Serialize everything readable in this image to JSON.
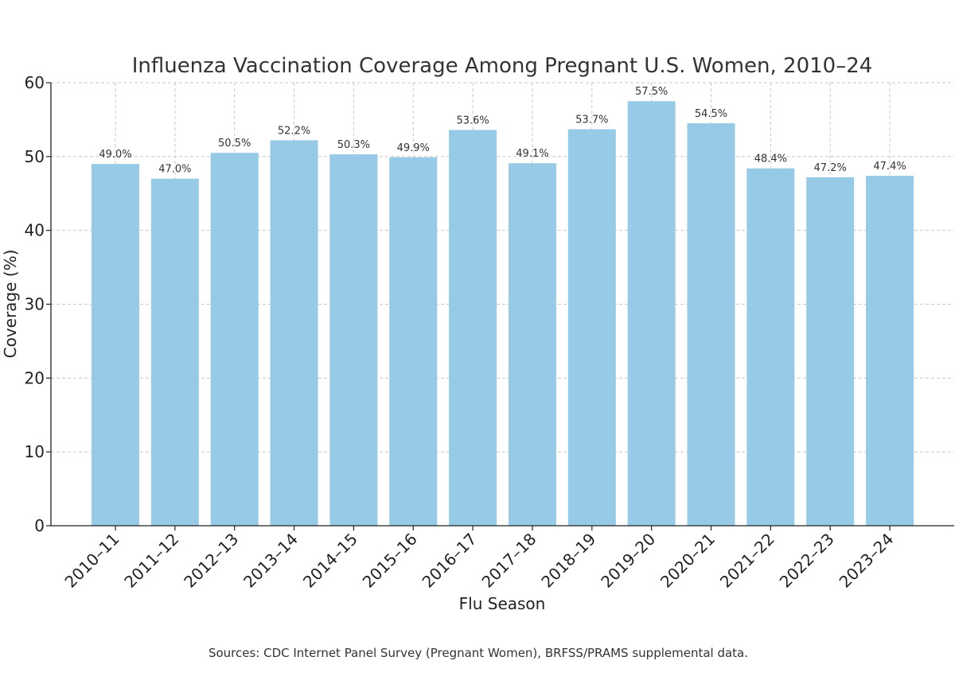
{
  "chart_data": {
    "type": "bar",
    "title": "Influenza Vaccination Coverage Among Pregnant U.S. Women, 2010–24",
    "xlabel": "Flu Season",
    "ylabel": "Coverage (%)",
    "categories": [
      "2010–11",
      "2011–12",
      "2012–13",
      "2013–14",
      "2014–15",
      "2015–16",
      "2016–17",
      "2017–18",
      "2018–19",
      "2019–20",
      "2020–21",
      "2021–22",
      "2022–23",
      "2023–24"
    ],
    "values": [
      49.0,
      47.0,
      50.5,
      52.2,
      50.3,
      49.9,
      53.6,
      49.1,
      53.7,
      57.5,
      54.5,
      48.4,
      47.2,
      47.4
    ],
    "data_labels": [
      "49.0%",
      "47.0%",
      "50.5%",
      "52.2%",
      "50.3%",
      "49.9%",
      "53.6%",
      "49.1%",
      "53.7%",
      "57.5%",
      "54.5%",
      "48.4%",
      "47.2%",
      "47.4%"
    ],
    "ylim": [
      0,
      60
    ],
    "yticks": [
      0,
      10,
      20,
      30,
      40,
      50,
      60
    ],
    "grid": true,
    "bar_color": "#97cae6",
    "source_note": "Sources: CDC Internet Panel Survey (Pregnant Women), BRFSS/PRAMS supplemental data."
  }
}
